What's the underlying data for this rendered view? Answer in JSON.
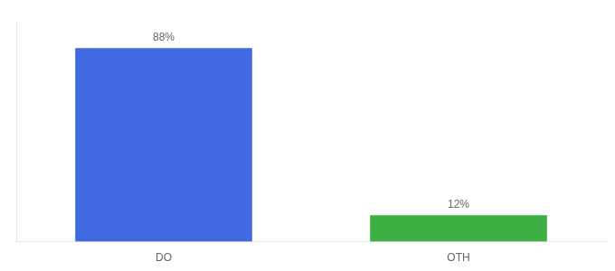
{
  "chart_data": {
    "type": "bar",
    "categories": [
      "DO",
      "OTH"
    ],
    "values": [
      88,
      12
    ],
    "value_labels": [
      "88%",
      "12%"
    ],
    "colors": [
      "#4169E1",
      "#3CB043"
    ],
    "ylim": [
      0,
      100
    ],
    "data_labels": true,
    "tick_labels": "x",
    "grid": false
  }
}
